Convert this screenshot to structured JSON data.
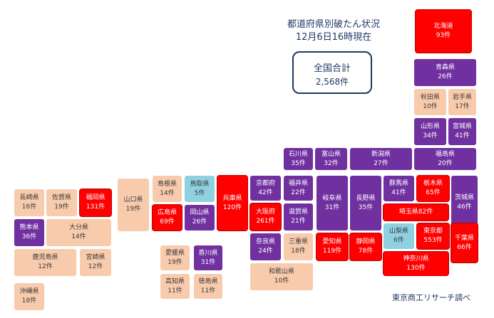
{
  "header": {
    "title": "都道府県別破たん状況",
    "date": "12月6日16時現在"
  },
  "total": {
    "label": "全国合計",
    "value": "2,568件"
  },
  "source": "東京商工リサーチ調べ",
  "colors": {
    "red": "#ff0000",
    "purple": "#7030a0",
    "peach": "#f8cbad",
    "blue": "#8fd1e0",
    "navy": "#1f3864"
  },
  "prefectures": {
    "hokkaido": {
      "name": "北海道",
      "count": "93件",
      "tier": "red"
    },
    "aomori": {
      "name": "青森県",
      "count": "26件",
      "tier": "purple"
    },
    "akita": {
      "name": "秋田県",
      "count": "10件",
      "tier": "peach"
    },
    "iwate": {
      "name": "岩手県",
      "count": "17件",
      "tier": "peach"
    },
    "yamagata": {
      "name": "山形県",
      "count": "34件",
      "tier": "purple"
    },
    "miyagi": {
      "name": "宮城県",
      "count": "41件",
      "tier": "purple"
    },
    "fukushima": {
      "name": "福島県",
      "count": "20件",
      "tier": "purple"
    },
    "niigata": {
      "name": "新潟県",
      "count": "27件",
      "tier": "purple"
    },
    "ishikawa": {
      "name": "石川県",
      "count": "35件",
      "tier": "purple"
    },
    "toyama": {
      "name": "富山県",
      "count": "32件",
      "tier": "purple"
    },
    "fukui": {
      "name": "福井県",
      "count": "22件",
      "tier": "purple"
    },
    "kyoto": {
      "name": "京都府",
      "count": "42件",
      "tier": "purple"
    },
    "hyogo": {
      "name": "兵庫県",
      "count": "120件",
      "tier": "red"
    },
    "tottori": {
      "name": "鳥取県",
      "count": "5件",
      "tier": "blue"
    },
    "shimane": {
      "name": "島根県",
      "count": "14件",
      "tier": "peach"
    },
    "yamaguchi": {
      "name": "山口県",
      "count": "19件",
      "tier": "peach"
    },
    "hiroshima": {
      "name": "広島県",
      "count": "69件",
      "tier": "red"
    },
    "okayama": {
      "name": "岡山県",
      "count": "26件",
      "tier": "purple"
    },
    "osaka": {
      "name": "大阪府",
      "count": "261件",
      "tier": "red"
    },
    "shiga": {
      "name": "滋賀県",
      "count": "21件",
      "tier": "purple"
    },
    "nara": {
      "name": "奈良県",
      "count": "24件",
      "tier": "purple"
    },
    "mie": {
      "name": "三重県",
      "count": "18件",
      "tier": "peach"
    },
    "wakayama": {
      "name": "和歌山県",
      "count": "10件",
      "tier": "peach"
    },
    "gifu": {
      "name": "岐阜県",
      "count": "31件",
      "tier": "purple"
    },
    "nagano": {
      "name": "長野県",
      "count": "35件",
      "tier": "purple"
    },
    "aichi": {
      "name": "愛知県",
      "count": "119件",
      "tier": "red"
    },
    "shizuoka": {
      "name": "静岡県",
      "count": "78件",
      "tier": "red"
    },
    "gunma": {
      "name": "群馬県",
      "count": "41件",
      "tier": "purple"
    },
    "tochigi": {
      "name": "栃木県",
      "count": "65件",
      "tier": "red"
    },
    "ibaraki": {
      "name": "茨城県",
      "count": "46件",
      "tier": "purple"
    },
    "saitama": {
      "name": "埼玉県",
      "count": "82件",
      "tier": "red"
    },
    "yamanashi": {
      "name": "山梨県",
      "count": "6件",
      "tier": "blue"
    },
    "tokyo": {
      "name": "東京都",
      "count": "553件",
      "tier": "red"
    },
    "chiba": {
      "name": "千葉県",
      "count": "66件",
      "tier": "red"
    },
    "kanagawa": {
      "name": "神奈川県",
      "count": "130件",
      "tier": "red"
    },
    "nagasaki": {
      "name": "長崎県",
      "count": "16件",
      "tier": "peach"
    },
    "saga": {
      "name": "佐賀県",
      "count": "19件",
      "tier": "peach"
    },
    "fukuoka": {
      "name": "福岡県",
      "count": "131件",
      "tier": "red"
    },
    "kumamoto": {
      "name": "熊本県",
      "count": "36件",
      "tier": "purple"
    },
    "oita": {
      "name": "大分県",
      "count": "14件",
      "tier": "peach"
    },
    "kagoshima": {
      "name": "鹿児島県",
      "count": "12件",
      "tier": "peach"
    },
    "miyazaki": {
      "name": "宮崎県",
      "count": "12件",
      "tier": "peach"
    },
    "okinawa": {
      "name": "沖縄県",
      "count": "18件",
      "tier": "peach"
    },
    "ehime": {
      "name": "愛媛県",
      "count": "19件",
      "tier": "peach"
    },
    "kagawa": {
      "name": "香川県",
      "count": "31件",
      "tier": "purple"
    },
    "kochi": {
      "name": "高知県",
      "count": "11件",
      "tier": "peach"
    },
    "tokushima": {
      "name": "徳島県",
      "count": "11件",
      "tier": "peach"
    }
  }
}
